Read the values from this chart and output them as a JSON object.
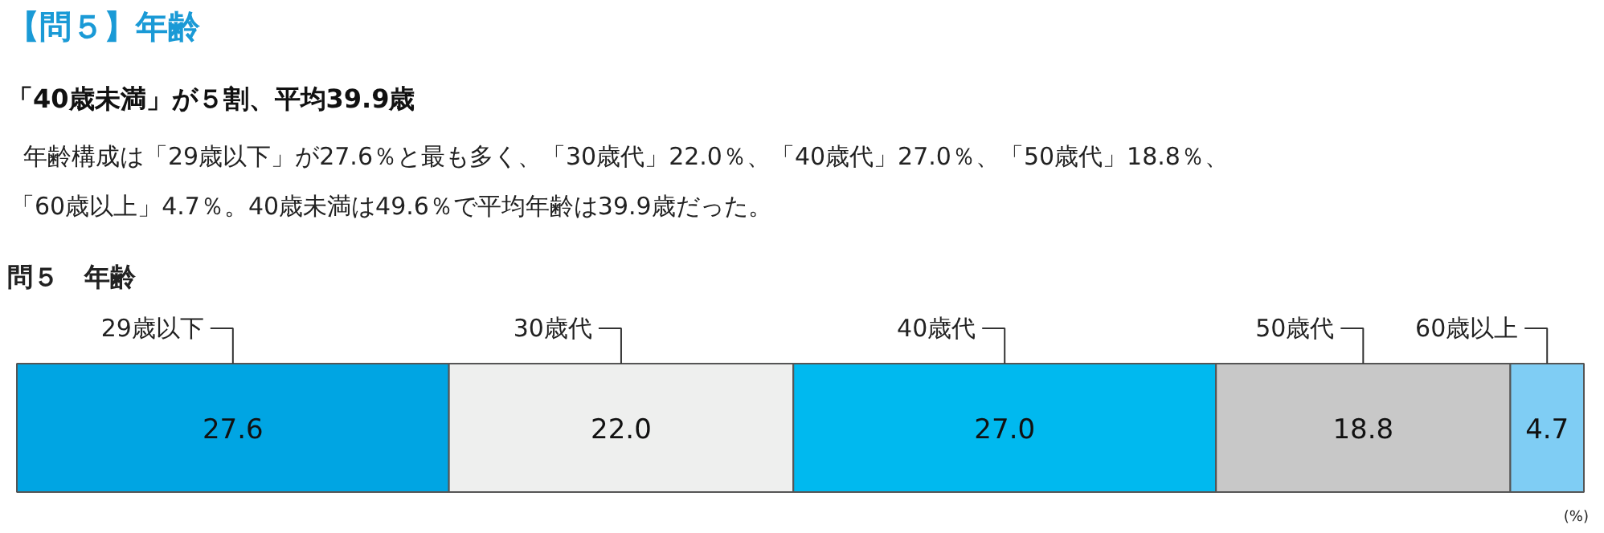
{
  "chart_data": {
    "type": "bar",
    "orientation": "horizontal",
    "stacked": true,
    "title": "【問５】年齢",
    "subtitle": "「40歳未満」が５割、平均39.9歳",
    "annotations": [
      "年齢構成は「29歳以下」が27.6％と最も多く、「30歳代」22.0％、「40歳代」27.0％、「50歳代」18.8％、",
      "「60歳以上」4.7％。40歳未満は49.6％で平均年齢は39.9歳だった。",
      "問５　年齢",
      "(%)"
    ],
    "categories": [
      null
    ],
    "series": [
      {
        "name": "29歳以下",
        "color": "#00a5e3",
        "values": [
          27.6
        ],
        "value_labels": [
          "27.6"
        ]
      },
      {
        "name": "30歳代",
        "color": "#eeefee",
        "values": [
          22.0
        ],
        "value_labels": [
          "22.0"
        ]
      },
      {
        "name": "40歳代",
        "color": "#00b9ef",
        "values": [
          27.0
        ],
        "value_labels": [
          "27.0"
        ]
      },
      {
        "name": "50歳代",
        "color": "#c8c8c8",
        "values": [
          18.8
        ],
        "value_labels": [
          "18.8"
        ]
      },
      {
        "name": "60歳以上",
        "color": "#7fcdf4",
        "values": [
          4.7
        ],
        "value_labels": [
          "4.7"
        ]
      }
    ]
  }
}
